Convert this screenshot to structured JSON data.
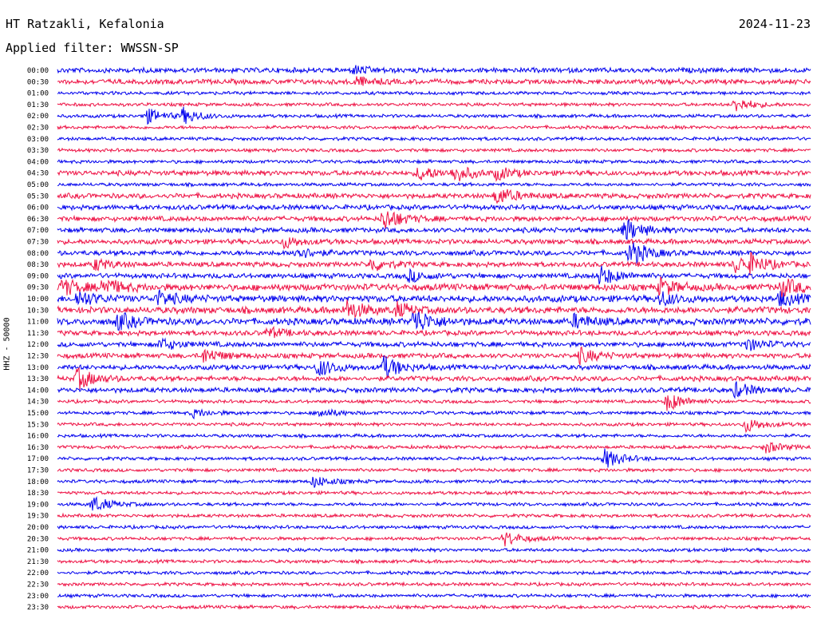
{
  "header": {
    "station": "HT Ratzakli, Kefalonia",
    "date": "2024-11-23",
    "filter": "Applied filter: WWSSN-SP"
  },
  "chart_data": {
    "type": "line",
    "title": "HT Ratzakli, Kefalonia",
    "ylabel": "HHZ - 50000",
    "xlabel": "",
    "row_labels": [
      "00:00",
      "00:30",
      "01:00",
      "01:30",
      "02:00",
      "02:30",
      "03:00",
      "03:30",
      "04:00",
      "04:30",
      "05:00",
      "05:30",
      "06:00",
      "06:30",
      "07:00",
      "07:30",
      "08:00",
      "08:30",
      "09:00",
      "09:30",
      "10:00",
      "10:30",
      "11:00",
      "11:30",
      "12:00",
      "12:30",
      "13:00",
      "13:30",
      "14:00",
      "14:30",
      "15:00",
      "15:30",
      "16:00",
      "16:30",
      "17:00",
      "17:30",
      "18:00",
      "18:30",
      "19:00",
      "19:30",
      "20:00",
      "20:30",
      "21:00",
      "21:30",
      "22:00",
      "22:30",
      "23:00",
      "23:30"
    ],
    "row_minutes": 30,
    "series_colors": [
      "#0000ee",
      "#ee1144"
    ],
    "noise_amplitude": [
      3,
      3,
      2,
      2,
      2,
      2,
      2,
      2,
      2,
      3,
      2,
      3,
      3,
      3,
      3,
      3,
      3,
      3,
      3,
      4,
      4,
      4,
      4,
      3,
      3,
      3,
      3,
      3,
      3,
      2,
      2,
      2,
      2,
      2,
      2,
      2,
      2,
      2,
      2,
      2,
      2,
      2,
      2,
      2,
      2,
      2,
      2,
      2
    ],
    "events": [
      {
        "row": 0,
        "minute": 11.8,
        "amp": 5
      },
      {
        "row": 1,
        "minute": 11.8,
        "amp": 6
      },
      {
        "row": 3,
        "minute": 27,
        "amp": 9
      },
      {
        "row": 4,
        "minute": 3.5,
        "amp": 10
      },
      {
        "row": 4,
        "minute": 5,
        "amp": 9
      },
      {
        "row": 9,
        "minute": 14.4,
        "amp": 9
      },
      {
        "row": 9,
        "minute": 15.8,
        "amp": 10
      },
      {
        "row": 9,
        "minute": 17.5,
        "amp": 7
      },
      {
        "row": 11,
        "minute": 17.5,
        "amp": 11
      },
      {
        "row": 13,
        "minute": 13,
        "amp": 14
      },
      {
        "row": 14,
        "minute": 22.6,
        "amp": 14
      },
      {
        "row": 15,
        "minute": 9,
        "amp": 7
      },
      {
        "row": 16,
        "minute": 9.5,
        "amp": 8
      },
      {
        "row": 16,
        "minute": 22.8,
        "amp": 16
      },
      {
        "row": 17,
        "minute": 1.5,
        "amp": 7
      },
      {
        "row": 17,
        "minute": 12.5,
        "amp": 8
      },
      {
        "row": 17,
        "minute": 27,
        "amp": 10
      },
      {
        "row": 17,
        "minute": 27.6,
        "amp": 9
      },
      {
        "row": 18,
        "minute": 14,
        "amp": 7
      },
      {
        "row": 18,
        "minute": 21.6,
        "amp": 12
      },
      {
        "row": 19,
        "minute": 0.2,
        "amp": 10
      },
      {
        "row": 19,
        "minute": 1.8,
        "amp": 11
      },
      {
        "row": 19,
        "minute": 24,
        "amp": 10
      },
      {
        "row": 19,
        "minute": 28.8,
        "amp": 12
      },
      {
        "row": 20,
        "minute": 0.8,
        "amp": 10
      },
      {
        "row": 20,
        "minute": 4,
        "amp": 9
      },
      {
        "row": 20,
        "minute": 24,
        "amp": 8
      },
      {
        "row": 20,
        "minute": 28.8,
        "amp": 8
      },
      {
        "row": 21,
        "minute": 11.5,
        "amp": 12
      },
      {
        "row": 21,
        "minute": 13.5,
        "amp": 8
      },
      {
        "row": 22,
        "minute": 2.4,
        "amp": 10
      },
      {
        "row": 22,
        "minute": 14.2,
        "amp": 16
      },
      {
        "row": 22,
        "minute": 20.6,
        "amp": 8
      },
      {
        "row": 23,
        "minute": 8.4,
        "amp": 6
      },
      {
        "row": 24,
        "minute": 4.1,
        "amp": 7
      },
      {
        "row": 24,
        "minute": 27.4,
        "amp": 8
      },
      {
        "row": 25,
        "minute": 5.8,
        "amp": 9
      },
      {
        "row": 25,
        "minute": 20.8,
        "amp": 9
      },
      {
        "row": 26,
        "minute": 10.4,
        "amp": 11
      },
      {
        "row": 26,
        "minute": 13,
        "amp": 14
      },
      {
        "row": 27,
        "minute": 0.8,
        "amp": 13
      },
      {
        "row": 28,
        "minute": 27,
        "amp": 9
      },
      {
        "row": 29,
        "minute": 24.3,
        "amp": 12
      },
      {
        "row": 30,
        "minute": 5.4,
        "amp": 5
      },
      {
        "row": 30,
        "minute": 10.4,
        "amp": 6
      },
      {
        "row": 31,
        "minute": 27.4,
        "amp": 9
      },
      {
        "row": 33,
        "minute": 28.2,
        "amp": 7
      },
      {
        "row": 34,
        "minute": 21.8,
        "amp": 12
      },
      {
        "row": 36,
        "minute": 10.2,
        "amp": 7
      },
      {
        "row": 38,
        "minute": 1.4,
        "amp": 10
      },
      {
        "row": 41,
        "minute": 17.8,
        "amp": 9
      }
    ]
  }
}
